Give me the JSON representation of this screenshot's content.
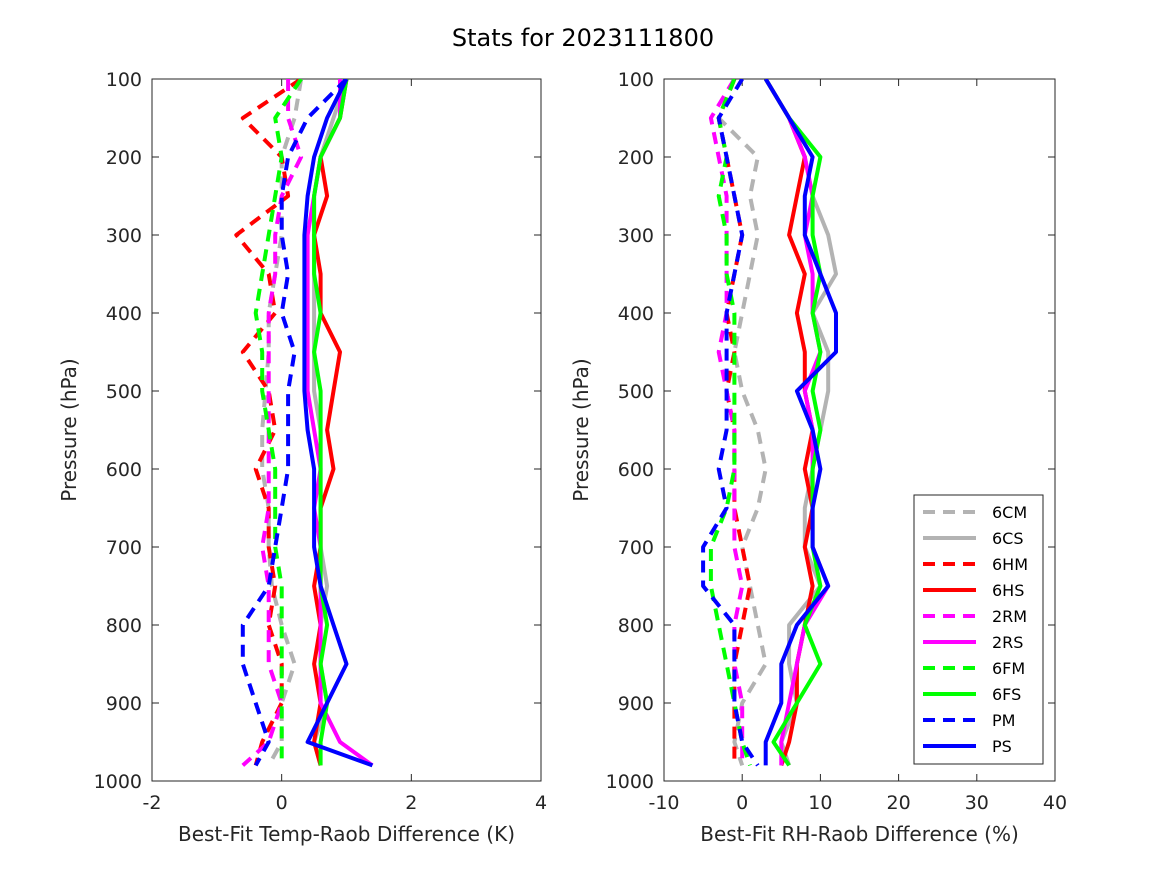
{
  "title": "Stats for 2023111800",
  "colors": {
    "6C": "#b3b3b3",
    "6H": "#ff0000",
    "2R": "#ff00ff",
    "6F": "#00ff00",
    "P": "#0000ff"
  },
  "chart_data": [
    {
      "type": "line",
      "xlabel": "Best-Fit Temp-Raob Difference (K)",
      "ylabel": "Pressure (hPa)",
      "xlim": [
        -2,
        4
      ],
      "ylim": [
        100,
        1000
      ],
      "y_reversed": true,
      "xticks": [
        "-2",
        "0",
        "2",
        "4"
      ],
      "yticks": [
        "100",
        "200",
        "300",
        "400",
        "500",
        "600",
        "700",
        "800",
        "900",
        "1000"
      ],
      "series": [
        {
          "name": "6CM",
          "color": "#b3b3b3",
          "dash": true,
          "x": [
            0.3,
            0.2,
            0.0,
            0.0,
            0.0,
            -0.1,
            -0.2,
            -0.2,
            -0.25,
            -0.3,
            -0.3,
            -0.2,
            -0.2,
            -0.15,
            0.0,
            0.2,
            0.0,
            0.0,
            -0.2
          ],
          "y": [
            100,
            150,
            200,
            250,
            300,
            350,
            400,
            450,
            500,
            550,
            600,
            650,
            700,
            750,
            800,
            850,
            900,
            950,
            980
          ]
        },
        {
          "name": "6CS",
          "color": "#b3b3b3",
          "dash": false,
          "x": [
            1.0,
            0.8,
            0.6,
            0.5,
            0.5,
            0.5,
            0.5,
            0.5,
            0.5,
            0.6,
            0.6,
            0.6,
            0.6,
            0.7,
            0.6,
            0.6,
            0.7,
            0.5,
            0.6
          ],
          "y": [
            100,
            150,
            200,
            250,
            300,
            350,
            400,
            450,
            500,
            550,
            600,
            650,
            700,
            750,
            800,
            850,
            900,
            950,
            980
          ]
        },
        {
          "name": "6HM",
          "color": "#ff0000",
          "dash": true,
          "x": [
            0.3,
            -0.6,
            0.0,
            0.1,
            -0.7,
            -0.2,
            -0.1,
            -0.6,
            -0.2,
            -0.1,
            -0.4,
            -0.2,
            -0.2,
            -0.1,
            -0.2,
            0.0,
            0.0,
            -0.3,
            -0.4
          ],
          "y": [
            100,
            150,
            200,
            250,
            300,
            350,
            400,
            450,
            500,
            550,
            600,
            650,
            700,
            750,
            800,
            850,
            900,
            950,
            980
          ]
        },
        {
          "name": "6HS",
          "color": "#ff0000",
          "dash": false,
          "x": [
            1.0,
            0.9,
            0.6,
            0.7,
            0.5,
            0.6,
            0.6,
            0.9,
            0.8,
            0.7,
            0.8,
            0.6,
            0.6,
            0.5,
            0.6,
            0.5,
            0.6,
            0.5,
            0.6
          ],
          "y": [
            100,
            150,
            200,
            250,
            300,
            350,
            400,
            450,
            500,
            550,
            600,
            650,
            700,
            750,
            800,
            850,
            900,
            950,
            980
          ]
        },
        {
          "name": "2RM",
          "color": "#ff00ff",
          "dash": true,
          "x": [
            0.1,
            0.1,
            0.3,
            0.0,
            -0.1,
            -0.1,
            -0.2,
            -0.2,
            -0.2,
            -0.2,
            -0.2,
            -0.2,
            -0.3,
            -0.2,
            -0.2,
            -0.2,
            0.0,
            -0.2,
            -0.6
          ],
          "y": [
            100,
            150,
            200,
            250,
            300,
            350,
            400,
            450,
            500,
            550,
            600,
            650,
            700,
            750,
            800,
            850,
            900,
            950,
            980
          ]
        },
        {
          "name": "2RS",
          "color": "#ff00ff",
          "dash": false,
          "x": [
            0.9,
            0.9,
            0.6,
            0.5,
            0.4,
            0.4,
            0.4,
            0.4,
            0.4,
            0.5,
            0.6,
            0.5,
            0.6,
            0.6,
            0.6,
            0.6,
            0.6,
            0.9,
            1.4
          ],
          "y": [
            100,
            150,
            200,
            250,
            300,
            350,
            400,
            450,
            500,
            550,
            600,
            650,
            700,
            750,
            800,
            850,
            900,
            950,
            980
          ]
        },
        {
          "name": "6FM",
          "color": "#00ff00",
          "dash": true,
          "x": [
            0.3,
            -0.1,
            0.0,
            -0.1,
            -0.2,
            -0.3,
            -0.4,
            -0.3,
            -0.3,
            -0.2,
            -0.1,
            -0.1,
            -0.1,
            0.0,
            0.0,
            0.0,
            0.0,
            0.0,
            0.0
          ],
          "y": [
            100,
            150,
            200,
            250,
            300,
            350,
            400,
            450,
            500,
            550,
            600,
            650,
            700,
            750,
            800,
            850,
            900,
            950,
            980
          ]
        },
        {
          "name": "6FS",
          "color": "#00ff00",
          "dash": false,
          "x": [
            1.0,
            0.9,
            0.6,
            0.5,
            0.5,
            0.5,
            0.6,
            0.5,
            0.6,
            0.6,
            0.6,
            0.6,
            0.6,
            0.6,
            0.7,
            0.6,
            0.7,
            0.6,
            0.6
          ],
          "y": [
            100,
            150,
            200,
            250,
            300,
            350,
            400,
            450,
            500,
            550,
            600,
            650,
            700,
            750,
            800,
            850,
            900,
            950,
            980
          ]
        },
        {
          "name": "PM",
          "color": "#0000ff",
          "dash": true,
          "x": [
            1.0,
            0.4,
            0.1,
            0.0,
            0.0,
            0.1,
            0.0,
            0.2,
            0.1,
            0.1,
            0.1,
            0.0,
            -0.1,
            -0.2,
            -0.6,
            -0.6,
            -0.4,
            -0.2,
            -0.4
          ],
          "y": [
            100,
            150,
            200,
            250,
            300,
            350,
            400,
            450,
            500,
            550,
            600,
            650,
            700,
            750,
            800,
            850,
            900,
            950,
            980
          ]
        },
        {
          "name": "PS",
          "color": "#0000ff",
          "dash": false,
          "x": [
            1.0,
            0.7,
            0.5,
            0.4,
            0.35,
            0.35,
            0.35,
            0.35,
            0.35,
            0.4,
            0.5,
            0.5,
            0.5,
            0.6,
            0.8,
            1.0,
            0.7,
            0.4,
            1.4
          ],
          "y": [
            100,
            150,
            200,
            250,
            300,
            350,
            400,
            450,
            500,
            550,
            600,
            650,
            700,
            750,
            800,
            850,
            900,
            950,
            980
          ]
        }
      ]
    },
    {
      "type": "line",
      "xlabel": "Best-Fit RH-Raob Difference (%)",
      "ylabel": "Pressure (hPa)",
      "xlim": [
        -10,
        40
      ],
      "ylim": [
        100,
        1000
      ],
      "y_reversed": true,
      "xticks": [
        "-10",
        "0",
        "10",
        "20",
        "30",
        "40"
      ],
      "yticks": [
        "100",
        "200",
        "300",
        "400",
        "500",
        "600",
        "700",
        "800",
        "900",
        "1000"
      ],
      "legend": {
        "placement": "bottom-right"
      },
      "series": [
        {
          "name": "6CM",
          "color": "#b3b3b3",
          "dash": true,
          "x": [
            -1,
            -3,
            2,
            1,
            2,
            1,
            0,
            -1,
            0,
            2,
            3,
            2,
            0,
            1,
            2,
            3,
            0,
            -1,
            0
          ],
          "y": [
            100,
            150,
            200,
            250,
            300,
            350,
            400,
            450,
            500,
            550,
            600,
            650,
            700,
            750,
            800,
            850,
            900,
            950,
            980
          ]
        },
        {
          "name": "6CS",
          "color": "#b3b3b3",
          "dash": false,
          "x": [
            3,
            6,
            8,
            9,
            11,
            12,
            9,
            11,
            11,
            10,
            9,
            8,
            8,
            10,
            6,
            6,
            7,
            5,
            6
          ],
          "y": [
            100,
            150,
            200,
            250,
            300,
            350,
            400,
            450,
            500,
            550,
            600,
            650,
            700,
            750,
            800,
            850,
            900,
            950,
            980
          ]
        },
        {
          "name": "6HM",
          "color": "#ff0000",
          "dash": true,
          "x": [
            -1,
            -3,
            -2,
            -1,
            0,
            -1,
            -2,
            -1,
            -2,
            -1,
            -1,
            -1,
            0,
            1,
            0,
            -1,
            -1,
            -1,
            -1
          ],
          "y": [
            100,
            150,
            200,
            250,
            300,
            350,
            400,
            450,
            500,
            550,
            600,
            650,
            700,
            750,
            800,
            850,
            900,
            950,
            980
          ]
        },
        {
          "name": "6HS",
          "color": "#ff0000",
          "dash": false,
          "x": [
            3,
            6,
            8,
            7,
            6,
            8,
            7,
            8,
            8,
            9,
            8,
            9,
            8,
            9,
            8,
            7,
            7,
            6,
            5
          ],
          "y": [
            100,
            150,
            200,
            250,
            300,
            350,
            400,
            450,
            500,
            550,
            600,
            650,
            700,
            750,
            800,
            850,
            900,
            950,
            980
          ]
        },
        {
          "name": "2RM",
          "color": "#ff00ff",
          "dash": true,
          "x": [
            -1,
            -4,
            -3,
            -2,
            -2,
            -2,
            -2,
            -3,
            -2,
            -1,
            -1,
            -1,
            -1,
            0,
            -1,
            -1,
            0,
            0,
            0
          ],
          "y": [
            100,
            150,
            200,
            250,
            300,
            350,
            400,
            450,
            500,
            550,
            600,
            650,
            700,
            750,
            800,
            850,
            900,
            950,
            980
          ]
        },
        {
          "name": "2RS",
          "color": "#ff00ff",
          "dash": false,
          "x": [
            3,
            6,
            8,
            9,
            8,
            9,
            9,
            10,
            8,
            9,
            9,
            9,
            9,
            11,
            8,
            7,
            6,
            5,
            5
          ],
          "y": [
            100,
            150,
            200,
            250,
            300,
            350,
            400,
            450,
            500,
            550,
            600,
            650,
            700,
            750,
            800,
            850,
            900,
            950,
            980
          ]
        },
        {
          "name": "6FM",
          "color": "#00ff00",
          "dash": true,
          "x": [
            -1,
            -3,
            -2,
            -3,
            -2,
            -2,
            -1,
            -1,
            -1,
            -1,
            -1,
            -2,
            -4,
            -4,
            -3,
            -2,
            -1,
            0,
            1
          ],
          "y": [
            100,
            150,
            200,
            250,
            300,
            350,
            400,
            450,
            500,
            550,
            600,
            650,
            700,
            750,
            800,
            850,
            900,
            950,
            980
          ]
        },
        {
          "name": "6FS",
          "color": "#00ff00",
          "dash": false,
          "x": [
            3,
            6,
            10,
            9,
            9,
            10,
            9,
            10,
            9,
            10,
            9,
            9,
            9,
            10,
            8,
            10,
            7,
            4,
            6
          ],
          "y": [
            100,
            150,
            200,
            250,
            300,
            350,
            400,
            450,
            500,
            550,
            600,
            650,
            700,
            750,
            800,
            850,
            900,
            950,
            980
          ]
        },
        {
          "name": "PM",
          "color": "#0000ff",
          "dash": true,
          "x": [
            0,
            -3,
            -2,
            -1,
            0,
            -1,
            -2,
            -2,
            -2,
            -2,
            -3,
            -2,
            -5,
            -5,
            -1,
            -1,
            -1,
            0,
            2
          ],
          "y": [
            100,
            150,
            200,
            250,
            300,
            350,
            400,
            450,
            500,
            550,
            600,
            650,
            700,
            750,
            800,
            850,
            900,
            950,
            980
          ]
        },
        {
          "name": "PS",
          "color": "#0000ff",
          "dash": false,
          "x": [
            3,
            6,
            9,
            8,
            8,
            10,
            12,
            12,
            7,
            9,
            10,
            9,
            9,
            11,
            7,
            5,
            5,
            3,
            3
          ],
          "y": [
            100,
            150,
            200,
            250,
            300,
            350,
            400,
            450,
            500,
            550,
            600,
            650,
            700,
            750,
            800,
            850,
            900,
            950,
            980
          ]
        }
      ]
    }
  ]
}
